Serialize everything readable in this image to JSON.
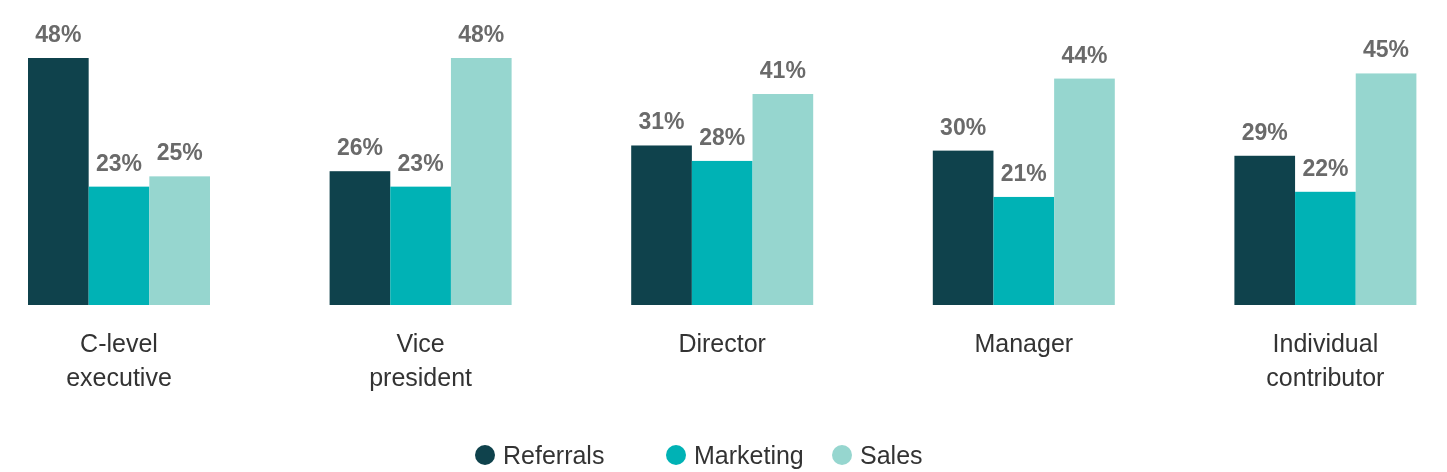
{
  "chart_data": {
    "type": "bar",
    "categories": [
      "C-level executive",
      "Vice president",
      "Director",
      "Manager",
      "Individual contributor"
    ],
    "series": [
      {
        "name": "Referrals",
        "color": "#0f424c",
        "values": [
          48,
          26,
          31,
          30,
          29
        ],
        "value_labels": [
          "48%",
          "26%",
          "31%",
          "30%",
          "29%"
        ]
      },
      {
        "name": "Marketing",
        "color": "#00b2b5",
        "values": [
          23,
          23,
          28,
          21,
          22
        ],
        "value_labels": [
          "23%",
          "23%",
          "28%",
          "21%",
          "22%"
        ]
      },
      {
        "name": "Sales",
        "color": "#96d6cf",
        "values": [
          25,
          48,
          41,
          44,
          45
        ],
        "value_labels": [
          "25%",
          "48%",
          "41%",
          "44%",
          "45%"
        ]
      }
    ],
    "legend": "bottom"
  }
}
